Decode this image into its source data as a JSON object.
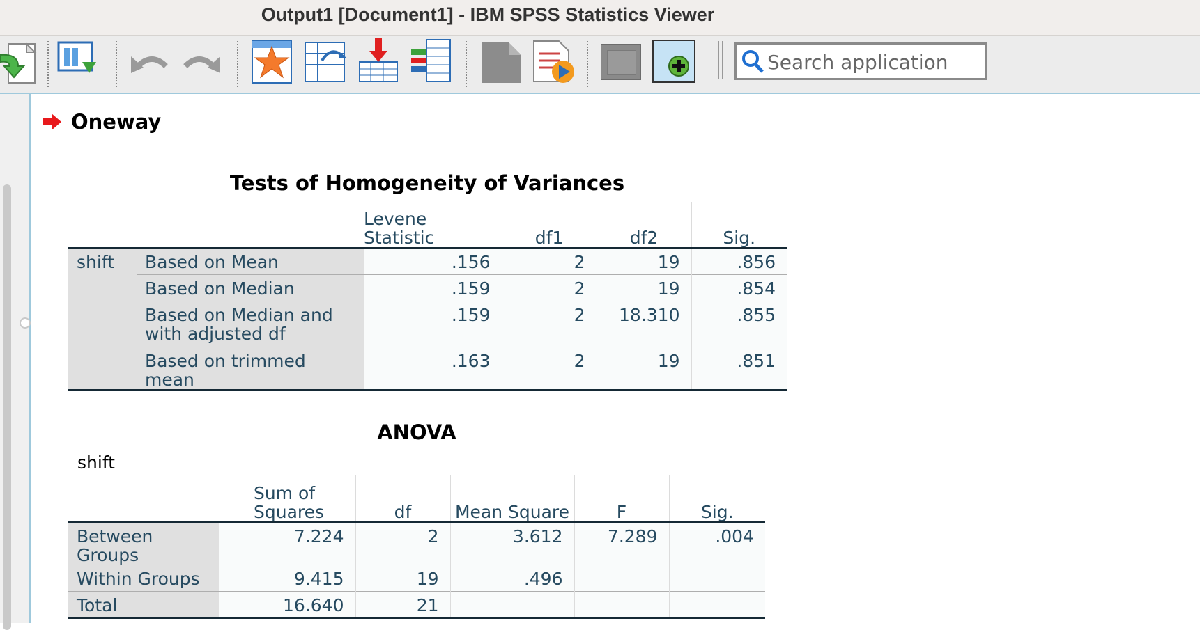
{
  "window": {
    "title": "Output1 [Document1] - IBM SPSS Statistics Viewer"
  },
  "toolbar": {
    "search_placeholder": "Search application",
    "icons": [
      "open-data-icon",
      "variables-icon",
      "undo-icon",
      "redo-icon",
      "goto-case-icon",
      "goto-variable-icon",
      "insert-cases-icon",
      "insert-variable-icon",
      "designate-window-icon",
      "run-icon",
      "hide-icon",
      "show-icon"
    ]
  },
  "output": {
    "heading": "Oneway",
    "levene": {
      "title": "Tests of Homogeneity of Variances",
      "headers": [
        "Levene Statistic",
        "df1",
        "df2",
        "Sig."
      ],
      "variable": "shift",
      "rows": [
        {
          "label": "Based on Mean",
          "values": [
            ".156",
            "2",
            "19",
            ".856"
          ]
        },
        {
          "label": "Based on Median",
          "values": [
            ".159",
            "2",
            "19",
            ".854"
          ]
        },
        {
          "label": "Based on Median and with adjusted df",
          "values": [
            ".159",
            "2",
            "18.310",
            ".855"
          ]
        },
        {
          "label": "Based on trimmed mean",
          "values": [
            ".163",
            "2",
            "19",
            ".851"
          ]
        }
      ]
    },
    "anova": {
      "title": "ANOVA",
      "subtitle": "shift",
      "headers": [
        "Sum of Squares",
        "df",
        "Mean Square",
        "F",
        "Sig."
      ],
      "rows": [
        {
          "label": "Between Groups",
          "values": [
            "7.224",
            "2",
            "3.612",
            "7.289",
            ".004"
          ]
        },
        {
          "label": "Within Groups",
          "values": [
            "9.415",
            "19",
            ".496",
            "",
            ""
          ]
        },
        {
          "label": "Total",
          "values": [
            "16.640",
            "21",
            "",
            "",
            ""
          ]
        }
      ]
    }
  }
}
